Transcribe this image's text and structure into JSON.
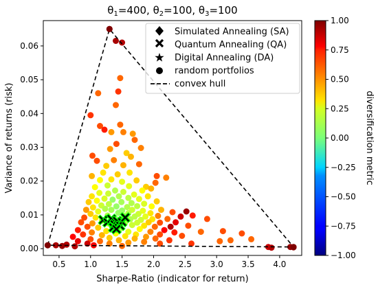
{
  "chart_data": {
    "type": "scatter",
    "title_prefix": [
      {
        "sym": "θ",
        "sub": "1",
        "val": "=400, "
      },
      {
        "sym": "θ",
        "sub": "2",
        "val": "=100, "
      },
      {
        "sym": "θ",
        "sub": "3",
        "val": "=100"
      }
    ],
    "xlabel": "Sharpe-Ratio (indicator for return)",
    "ylabel": "Variance of returns (risk)",
    "colorbar_label": "diversification metric",
    "xlim": [
      0.25,
      4.35
    ],
    "ylim": [
      -0.002,
      0.0675
    ],
    "xticks": [
      "0.5",
      "1.0",
      "1.5",
      "2.0",
      "2.5",
      "3.0",
      "3.5",
      "4.0"
    ],
    "yticks": [
      "0.00",
      "0.01",
      "0.02",
      "0.03",
      "0.04",
      "0.05",
      "0.06"
    ],
    "colorbar_range": [
      -1.0,
      1.0
    ],
    "colorbar_ticks": [
      "1.00",
      "0.75",
      "0.50",
      "0.25",
      "0.00",
      "−0.25",
      "−0.50",
      "−0.75",
      "−1.00"
    ],
    "colormap": "jet",
    "legend_position": "upper-right",
    "legend": [
      {
        "marker": "diamond",
        "label": "Simulated Annealing (SA)"
      },
      {
        "marker": "x",
        "label": "Quantum Annealing (QA)"
      },
      {
        "marker": "star",
        "label": "Digital Annealing (DA)"
      },
      {
        "marker": "circle",
        "label": "random portfolios"
      },
      {
        "marker": "dashed-line",
        "label": "convex hull"
      }
    ],
    "convex_hull": [
      [
        0.32,
        0.001
      ],
      [
        1.3,
        0.065
      ],
      [
        4.22,
        0.0005
      ]
    ],
    "random_portfolios": [
      {
        "x": 1.3,
        "y": 0.065,
        "c": 0.95
      },
      {
        "x": 1.4,
        "y": 0.0615,
        "c": 0.92
      },
      {
        "x": 1.5,
        "y": 0.061,
        "c": 0.9
      },
      {
        "x": 1.47,
        "y": 0.0505,
        "c": 0.55
      },
      {
        "x": 1.44,
        "y": 0.0465,
        "c": 0.65
      },
      {
        "x": 1.12,
        "y": 0.046,
        "c": 0.55
      },
      {
        "x": 1.0,
        "y": 0.0395,
        "c": 0.65
      },
      {
        "x": 1.4,
        "y": 0.0425,
        "c": 0.55
      },
      {
        "x": 1.15,
        "y": 0.0363,
        "c": 0.6
      },
      {
        "x": 1.22,
        "y": 0.0352,
        "c": 0.7
      },
      {
        "x": 1.33,
        "y": 0.0345,
        "c": 0.45
      },
      {
        "x": 1.47,
        "y": 0.0367,
        "c": 0.55
      },
      {
        "x": 1.52,
        "y": 0.0345,
        "c": 0.5
      },
      {
        "x": 1.67,
        "y": 0.034,
        "c": 0.45
      },
      {
        "x": 1.41,
        "y": 0.031,
        "c": 0.6
      },
      {
        "x": 1.7,
        "y": 0.0322,
        "c": 0.55
      },
      {
        "x": 1.31,
        "y": 0.0295,
        "c": 0.45
      },
      {
        "x": 1.8,
        "y": 0.0298,
        "c": 0.5
      },
      {
        "x": 1.57,
        "y": 0.0283,
        "c": 0.35
      },
      {
        "x": 1.03,
        "y": 0.0275,
        "c": 0.6
      },
      {
        "x": 1.1,
        "y": 0.026,
        "c": 0.6
      },
      {
        "x": 1.37,
        "y": 0.0262,
        "c": 0.5
      },
      {
        "x": 1.64,
        "y": 0.0272,
        "c": 0.4
      },
      {
        "x": 1.25,
        "y": 0.0245,
        "c": 0.35
      },
      {
        "x": 1.52,
        "y": 0.0247,
        "c": 0.4
      },
      {
        "x": 1.77,
        "y": 0.025,
        "c": 0.55
      },
      {
        "x": 2.05,
        "y": 0.0215,
        "c": 0.6
      },
      {
        "x": 1.2,
        "y": 0.0225,
        "c": 0.3
      },
      {
        "x": 1.43,
        "y": 0.022,
        "c": 0.35
      },
      {
        "x": 1.62,
        "y": 0.0225,
        "c": 0.3
      },
      {
        "x": 1.02,
        "y": 0.0215,
        "c": 0.4
      },
      {
        "x": 2.03,
        "y": 0.0195,
        "c": 0.55
      },
      {
        "x": 2.2,
        "y": 0.021,
        "c": 0.5
      },
      {
        "x": 1.15,
        "y": 0.0203,
        "c": 0.25
      },
      {
        "x": 1.33,
        "y": 0.0205,
        "c": 0.3
      },
      {
        "x": 1.5,
        "y": 0.0198,
        "c": 0.2
      },
      {
        "x": 1.73,
        "y": 0.0202,
        "c": 0.35
      },
      {
        "x": 1.27,
        "y": 0.0187,
        "c": 0.15
      },
      {
        "x": 1.61,
        "y": 0.0185,
        "c": 0.2
      },
      {
        "x": 1.88,
        "y": 0.0183,
        "c": 0.35
      },
      {
        "x": 1.07,
        "y": 0.0182,
        "c": 0.25
      },
      {
        "x": 1.39,
        "y": 0.0172,
        "c": 0.1
      },
      {
        "x": 1.52,
        "y": 0.0168,
        "c": 0.15
      },
      {
        "x": 1.82,
        "y": 0.0172,
        "c": 0.25
      },
      {
        "x": 1.96,
        "y": 0.0178,
        "c": 0.4
      },
      {
        "x": 1.14,
        "y": 0.0165,
        "c": 0.2
      },
      {
        "x": 1.28,
        "y": 0.0163,
        "c": 0.15
      },
      {
        "x": 1.69,
        "y": 0.016,
        "c": 0.2
      },
      {
        "x": 1.02,
        "y": 0.0155,
        "c": 0.3
      },
      {
        "x": 1.45,
        "y": 0.0155,
        "c": 0.1
      },
      {
        "x": 1.6,
        "y": 0.015,
        "c": 0.12
      },
      {
        "x": 1.91,
        "y": 0.0155,
        "c": 0.3
      },
      {
        "x": 1.22,
        "y": 0.0148,
        "c": 0.18
      },
      {
        "x": 1.35,
        "y": 0.0145,
        "c": 0.05
      },
      {
        "x": 1.77,
        "y": 0.0147,
        "c": 0.2
      },
      {
        "x": 1.1,
        "y": 0.0142,
        "c": 0.25
      },
      {
        "x": 2.05,
        "y": 0.014,
        "c": 0.35
      },
      {
        "x": 1.49,
        "y": 0.0138,
        "c": 0.08
      },
      {
        "x": 1.65,
        "y": 0.0135,
        "c": 0.1
      },
      {
        "x": 0.97,
        "y": 0.0138,
        "c": 0.35
      },
      {
        "x": 1.29,
        "y": 0.0132,
        "c": 0.12
      },
      {
        "x": 1.85,
        "y": 0.0133,
        "c": 0.18
      },
      {
        "x": 1.17,
        "y": 0.0128,
        "c": 0.15
      },
      {
        "x": 1.41,
        "y": 0.0125,
        "c": 0.05
      },
      {
        "x": 1.58,
        "y": 0.0123,
        "c": 0.1
      },
      {
        "x": 1.74,
        "y": 0.0126,
        "c": 0.12
      },
      {
        "x": 1.04,
        "y": 0.0122,
        "c": 0.3
      },
      {
        "x": 1.97,
        "y": 0.0125,
        "c": 0.25
      },
      {
        "x": 1.23,
        "y": 0.0118,
        "c": 0.1
      },
      {
        "x": 1.33,
        "y": 0.0115,
        "c": 0.08
      },
      {
        "x": 1.5,
        "y": 0.0113,
        "c": 0.05
      },
      {
        "x": 1.66,
        "y": 0.0115,
        "c": 0.15
      },
      {
        "x": 1.83,
        "y": 0.0112,
        "c": 0.2
      },
      {
        "x": 0.93,
        "y": 0.0115,
        "c": 0.45
      },
      {
        "x": 2.12,
        "y": 0.0115,
        "c": 0.4
      },
      {
        "x": 1.12,
        "y": 0.011,
        "c": 0.2
      },
      {
        "x": 1.44,
        "y": 0.0106,
        "c": 0.05
      },
      {
        "x": 1.6,
        "y": 0.0105,
        "c": 0.1
      },
      {
        "x": 1.76,
        "y": 0.0103,
        "c": 0.15
      },
      {
        "x": 1.95,
        "y": 0.0105,
        "c": 0.3
      },
      {
        "x": 1.0,
        "y": 0.0103,
        "c": 0.35
      },
      {
        "x": 2.3,
        "y": 0.0108,
        "c": 0.6
      },
      {
        "x": 2.52,
        "y": 0.011,
        "c": 0.95
      },
      {
        "x": 2.43,
        "y": 0.0095,
        "c": 0.85
      },
      {
        "x": 2.62,
        "y": 0.0098,
        "c": 0.7
      },
      {
        "x": 1.27,
        "y": 0.0098,
        "c": 0.1
      },
      {
        "x": 1.53,
        "y": 0.0097,
        "c": 0.08
      },
      {
        "x": 1.7,
        "y": 0.0095,
        "c": 0.12
      },
      {
        "x": 1.87,
        "y": 0.0095,
        "c": 0.2
      },
      {
        "x": 2.07,
        "y": 0.0097,
        "c": 0.5
      },
      {
        "x": 0.9,
        "y": 0.0092,
        "c": 0.6
      },
      {
        "x": 1.08,
        "y": 0.0092,
        "c": 0.3
      },
      {
        "x": 1.4,
        "y": 0.0088,
        "c": 0.05
      },
      {
        "x": 1.63,
        "y": 0.0087,
        "c": 0.1
      },
      {
        "x": 1.8,
        "y": 0.0085,
        "c": 0.15
      },
      {
        "x": 1.98,
        "y": 0.0087,
        "c": 0.3
      },
      {
        "x": 2.22,
        "y": 0.0088,
        "c": 0.55
      },
      {
        "x": 2.35,
        "y": 0.0078,
        "c": 0.8
      },
      {
        "x": 1.18,
        "y": 0.0083,
        "c": 0.2
      },
      {
        "x": 1.55,
        "y": 0.0078,
        "c": 0.1
      },
      {
        "x": 1.74,
        "y": 0.0077,
        "c": 0.15
      },
      {
        "x": 1.92,
        "y": 0.0078,
        "c": 0.35
      },
      {
        "x": 0.85,
        "y": 0.0078,
        "c": 0.6
      },
      {
        "x": 2.1,
        "y": 0.0077,
        "c": 0.6
      },
      {
        "x": 1.03,
        "y": 0.0075,
        "c": 0.45
      },
      {
        "x": 1.3,
        "y": 0.0073,
        "c": 0.15
      },
      {
        "x": 1.66,
        "y": 0.007,
        "c": 0.15
      },
      {
        "x": 1.85,
        "y": 0.0068,
        "c": 0.3
      },
      {
        "x": 2.27,
        "y": 0.0065,
        "c": 0.9
      },
      {
        "x": 2.02,
        "y": 0.0065,
        "c": 0.55
      },
      {
        "x": 0.95,
        "y": 0.0065,
        "c": 0.6
      },
      {
        "x": 1.12,
        "y": 0.0062,
        "c": 0.35
      },
      {
        "x": 1.48,
        "y": 0.006,
        "c": 0.1
      },
      {
        "x": 1.78,
        "y": 0.0058,
        "c": 0.25
      },
      {
        "x": 2.17,
        "y": 0.0055,
        "c": 0.75
      },
      {
        "x": 0.8,
        "y": 0.0055,
        "c": 0.7
      },
      {
        "x": 1.25,
        "y": 0.0052,
        "c": 0.3
      },
      {
        "x": 1.6,
        "y": 0.005,
        "c": 0.2
      },
      {
        "x": 1.95,
        "y": 0.005,
        "c": 0.5
      },
      {
        "x": 2.33,
        "y": 0.0048,
        "c": 0.7
      },
      {
        "x": 1.02,
        "y": 0.0048,
        "c": 0.5
      },
      {
        "x": 1.4,
        "y": 0.0045,
        "c": 0.25
      },
      {
        "x": 1.72,
        "y": 0.0042,
        "c": 0.3
      },
      {
        "x": 2.1,
        "y": 0.0042,
        "c": 0.6
      },
      {
        "x": 0.88,
        "y": 0.0042,
        "c": 0.65
      },
      {
        "x": 1.18,
        "y": 0.004,
        "c": 0.4
      },
      {
        "x": 1.55,
        "y": 0.0037,
        "c": 0.3
      },
      {
        "x": 1.88,
        "y": 0.0035,
        "c": 0.45
      },
      {
        "x": 0.72,
        "y": 0.0035,
        "c": 0.75
      },
      {
        "x": 2.45,
        "y": 0.0038,
        "c": 0.6
      },
      {
        "x": 1.3,
        "y": 0.0032,
        "c": 0.35
      },
      {
        "x": 1.7,
        "y": 0.003,
        "c": 0.4
      },
      {
        "x": 2.03,
        "y": 0.003,
        "c": 0.55
      },
      {
        "x": 1.0,
        "y": 0.0028,
        "c": 0.6
      },
      {
        "x": 1.45,
        "y": 0.0025,
        "c": 0.4
      },
      {
        "x": 2.25,
        "y": 0.0025,
        "c": 0.65
      },
      {
        "x": 0.8,
        "y": 0.0022,
        "c": 0.8
      },
      {
        "x": 1.15,
        "y": 0.0022,
        "c": 0.55
      },
      {
        "x": 1.85,
        "y": 0.002,
        "c": 0.5
      },
      {
        "x": 1.6,
        "y": 0.0018,
        "c": 0.45
      },
      {
        "x": 0.95,
        "y": 0.0015,
        "c": 0.85
      },
      {
        "x": 1.3,
        "y": 0.0015,
        "c": 0.5
      },
      {
        "x": 2.1,
        "y": 0.0015,
        "c": 0.6
      },
      {
        "x": 0.62,
        "y": 0.0012,
        "c": 0.9
      },
      {
        "x": 1.05,
        "y": 0.001,
        "c": 0.75
      },
      {
        "x": 1.5,
        "y": 0.0008,
        "c": 0.55
      },
      {
        "x": 0.55,
        "y": 0.0008,
        "c": 0.95
      },
      {
        "x": 0.32,
        "y": 0.001,
        "c": 0.98
      },
      {
        "x": 0.45,
        "y": 0.001,
        "c": 0.92
      },
      {
        "x": 0.75,
        "y": 0.0007,
        "c": 0.9
      },
      {
        "x": 2.55,
        "y": 0.0068,
        "c": 0.6
      },
      {
        "x": 2.75,
        "y": 0.005,
        "c": 0.55
      },
      {
        "x": 2.6,
        "y": 0.0015,
        "c": 0.65
      },
      {
        "x": 2.85,
        "y": 0.0088,
        "c": 0.6
      },
      {
        "x": 3.05,
        "y": 0.0022,
        "c": 0.55
      },
      {
        "x": 3.1,
        "y": 0.0052,
        "c": 0.6
      },
      {
        "x": 3.22,
        "y": 0.0025,
        "c": 0.55
      },
      {
        "x": 3.4,
        "y": 0.0045,
        "c": 0.6
      },
      {
        "x": 3.55,
        "y": 0.0028,
        "c": 0.55
      },
      {
        "x": 3.82,
        "y": 0.0005,
        "c": 0.85
      },
      {
        "x": 3.87,
        "y": 0.0003,
        "c": 0.9
      },
      {
        "x": 4.17,
        "y": 0.0005,
        "c": 0.95
      },
      {
        "x": 4.22,
        "y": 0.0004,
        "c": 0.98
      }
    ],
    "qa_markers": [
      {
        "x": 1.2,
        "y": 0.0085
      },
      {
        "x": 1.27,
        "y": 0.0078
      },
      {
        "x": 1.33,
        "y": 0.0088
      },
      {
        "x": 1.38,
        "y": 0.0072
      },
      {
        "x": 1.42,
        "y": 0.0082
      },
      {
        "x": 1.36,
        "y": 0.0063
      },
      {
        "x": 1.47,
        "y": 0.0068
      },
      {
        "x": 1.5,
        "y": 0.0079
      },
      {
        "x": 1.41,
        "y": 0.0058
      },
      {
        "x": 1.55,
        "y": 0.0092
      }
    ],
    "colors": {
      "hull": "#000000",
      "marker_outline": "#00ff00",
      "marker_fill": "#000000"
    }
  }
}
